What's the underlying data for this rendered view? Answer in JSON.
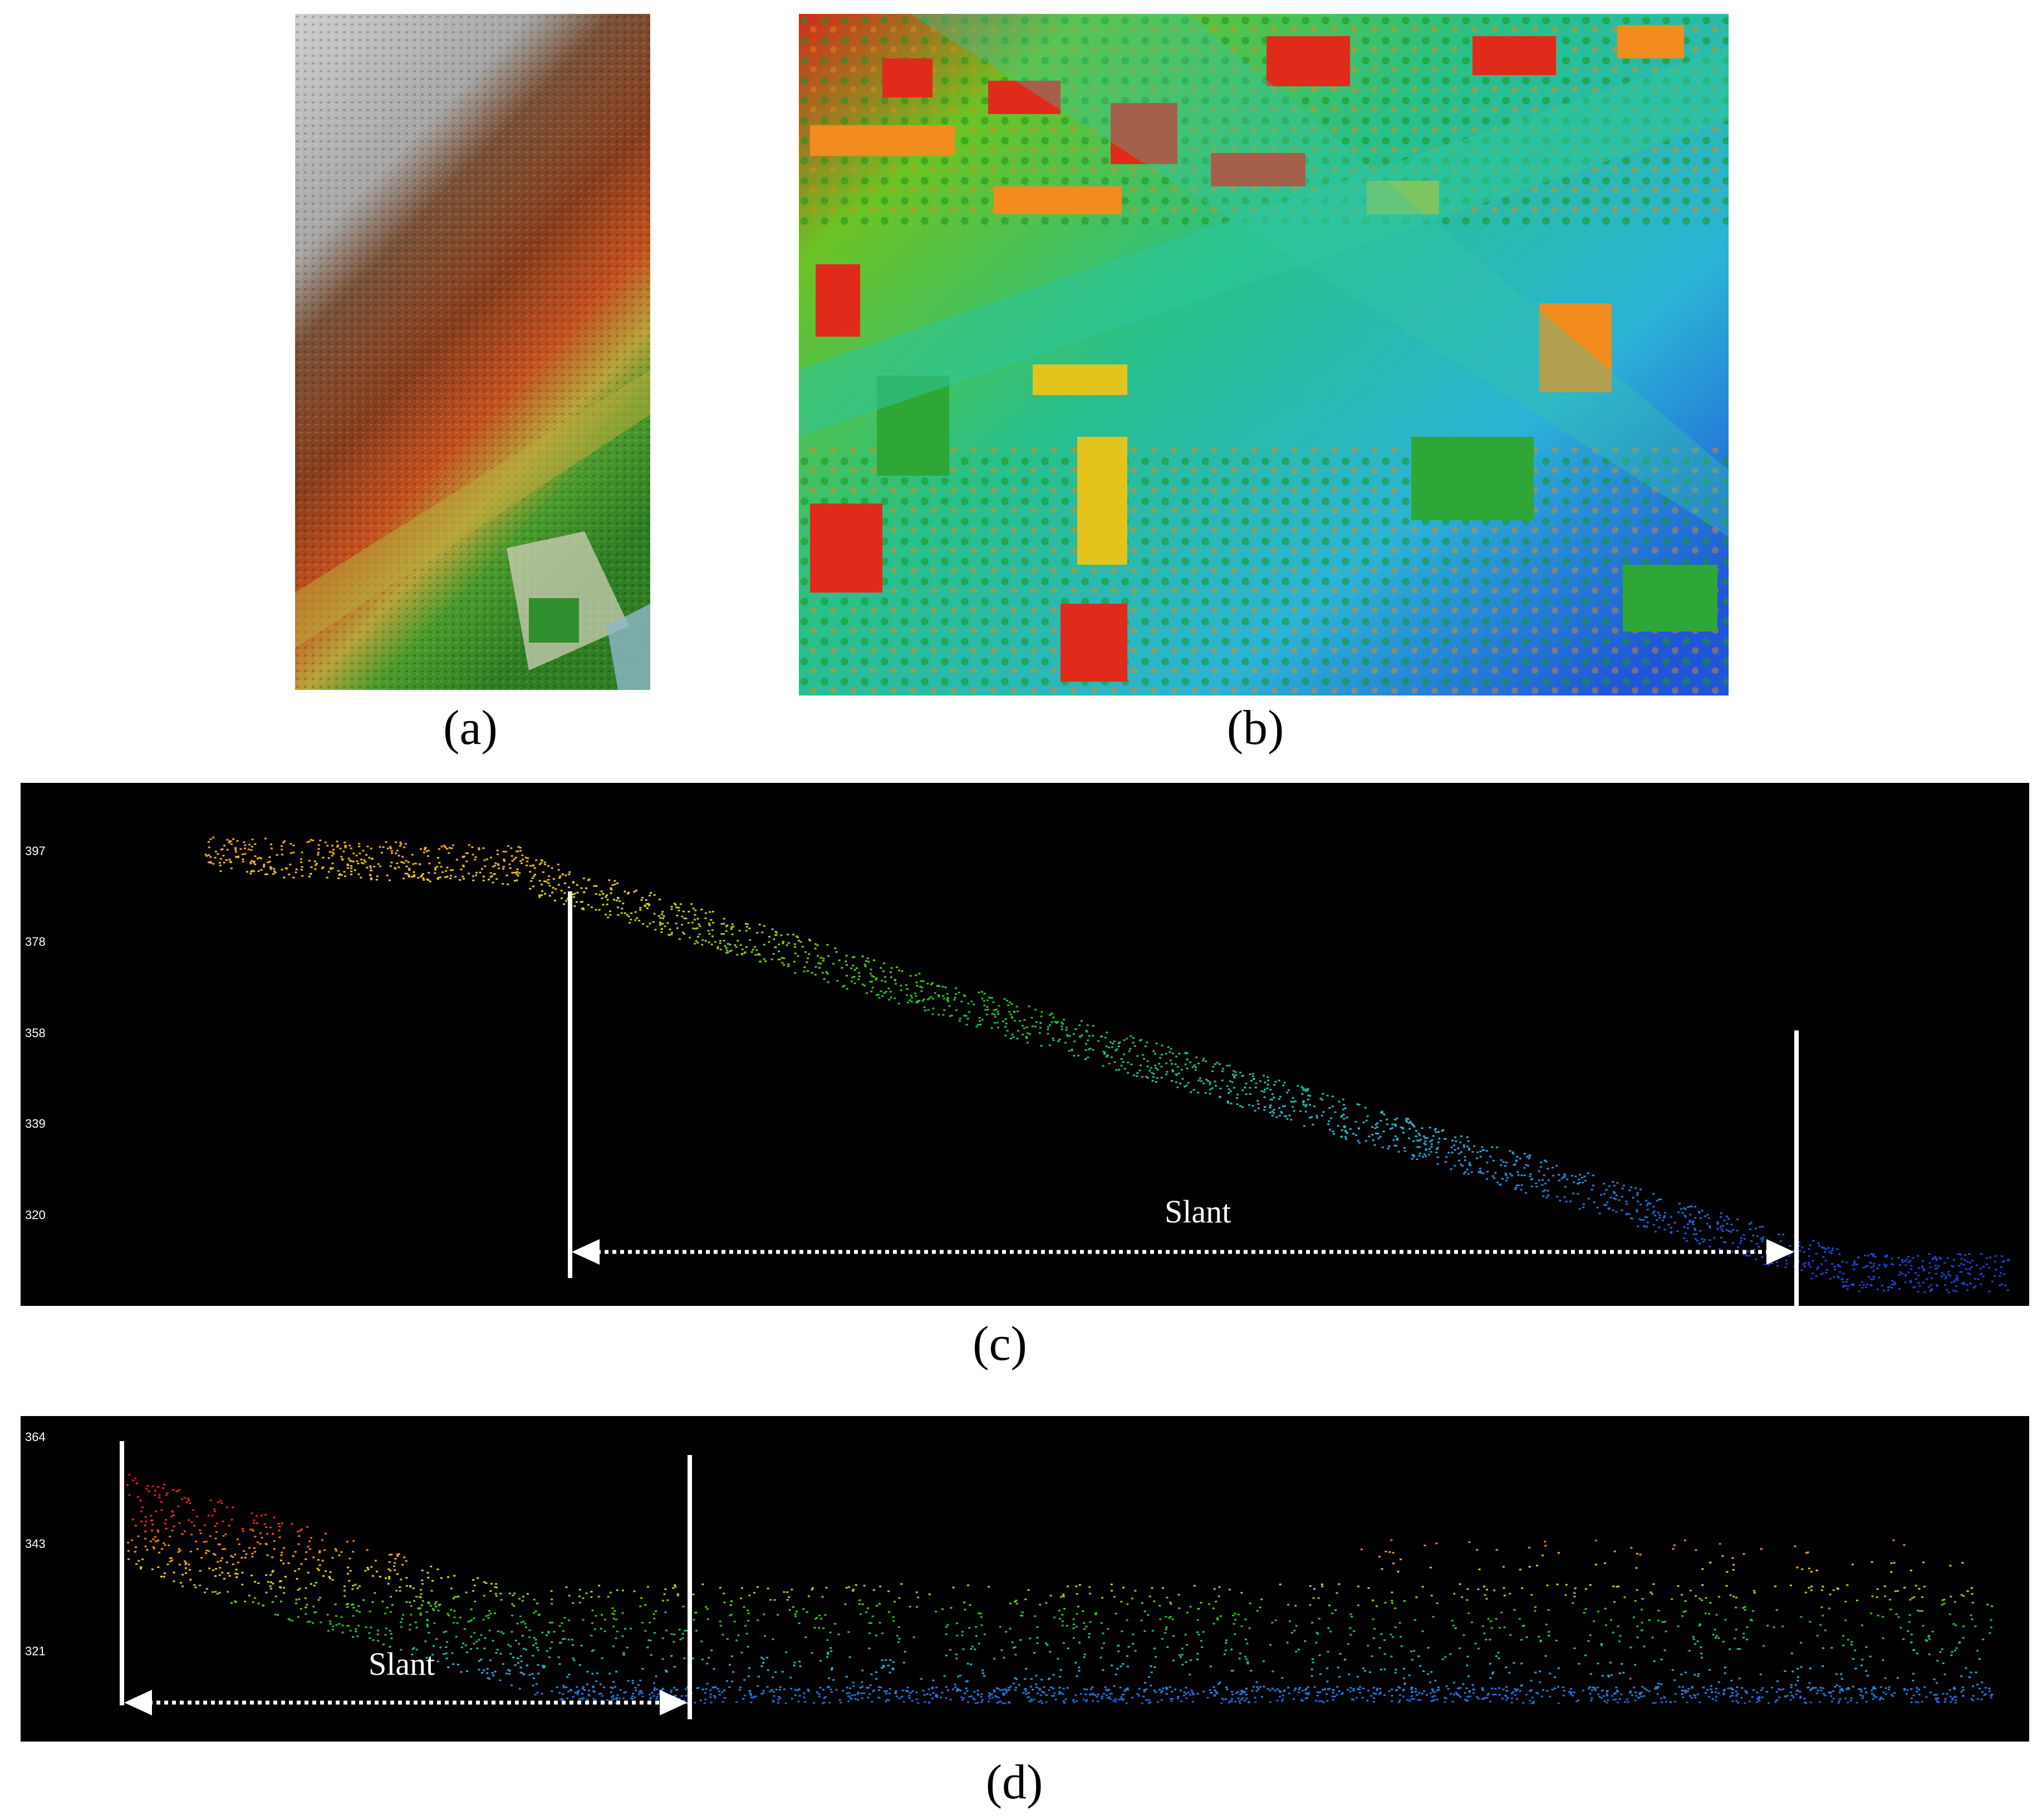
{
  "panels": {
    "a": {
      "caption": "(a)"
    },
    "b": {
      "caption": "(b)"
    },
    "c": {
      "caption": "(c)",
      "y_ticks": [
        "397",
        "378",
        "358",
        "339",
        "320"
      ],
      "annotation": "Slant"
    },
    "d": {
      "caption": "(d)",
      "y_ticks": [
        "364",
        "343",
        "321"
      ],
      "annotation": "Slant"
    }
  },
  "colors": {
    "profile_background": "#000000",
    "marker_lines": "#ffffff",
    "elevation_low": "#1f3fd6",
    "elevation_mid": "#21c21f",
    "elevation_high": "#e01e1e"
  }
}
